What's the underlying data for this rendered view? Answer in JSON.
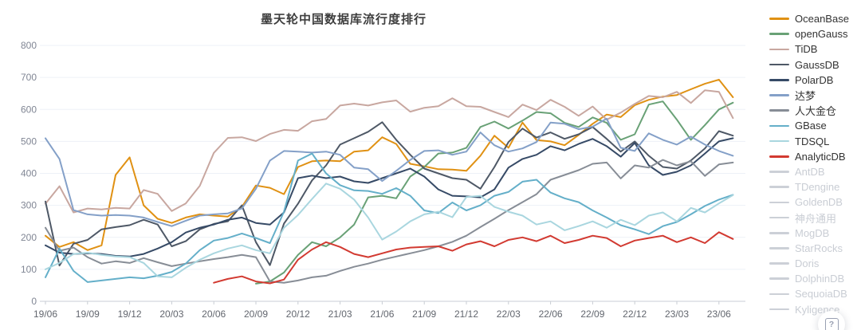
{
  "chart_data": {
    "type": "line",
    "title": "墨天轮中国数据库流行度排行",
    "x": [
      "19/06",
      "19/07",
      "19/08",
      "19/09",
      "19/10",
      "19/11",
      "19/12",
      "20/01",
      "20/02",
      "20/03",
      "20/04",
      "20/05",
      "20/06",
      "20/07",
      "20/08",
      "20/09",
      "20/10",
      "20/11",
      "20/12",
      "21/01",
      "21/02",
      "21/03",
      "21/04",
      "21/05",
      "21/06",
      "21/07",
      "21/08",
      "21/09",
      "21/10",
      "21/11",
      "21/12",
      "22/01",
      "22/02",
      "22/03",
      "22/04",
      "22/05",
      "22/06",
      "22/07",
      "22/08",
      "22/09",
      "22/10",
      "22/11",
      "22/12",
      "23/01",
      "23/02",
      "23/03",
      "23/04",
      "23/05",
      "23/06",
      "23/07"
    ],
    "x_label_every": 3,
    "ylim": [
      0,
      800
    ],
    "yticks": [
      0,
      100,
      200,
      300,
      400,
      500,
      600,
      700,
      800
    ],
    "grid": true,
    "legend_position": "right",
    "inactive_color": "#ccd0d7",
    "series": [
      {
        "name": "OceanBase",
        "color": "#e09113",
        "active": true,
        "values": [
          205,
          170,
          185,
          160,
          175,
          395,
          450,
          300,
          258,
          245,
          262,
          272,
          268,
          265,
          295,
          362,
          355,
          335,
          420,
          438,
          440,
          438,
          468,
          472,
          513,
          492,
          430,
          422,
          413,
          412,
          408,
          455,
          518,
          480,
          559,
          504,
          500,
          488,
          520,
          555,
          584,
          576,
          613,
          630,
          640,
          645,
          663,
          680,
          693,
          638
        ]
      },
      {
        "name": "openGauss",
        "color": "#69a176",
        "active": true,
        "values": [
          null,
          null,
          null,
          null,
          null,
          null,
          null,
          null,
          null,
          null,
          null,
          null,
          null,
          null,
          null,
          55,
          62,
          90,
          145,
          185,
          172,
          200,
          240,
          325,
          330,
          322,
          390,
          420,
          462,
          465,
          480,
          545,
          562,
          540,
          565,
          592,
          588,
          558,
          545,
          575,
          558,
          505,
          522,
          615,
          625,
          568,
          505,
          551,
          600,
          621
        ]
      },
      {
        "name": "TiDB",
        "color": "#c8a7a0",
        "active": true,
        "values": [
          305,
          360,
          278,
          290,
          287,
          292,
          290,
          348,
          336,
          282,
          306,
          361,
          464,
          511,
          513,
          501,
          523,
          536,
          533,
          563,
          570,
          612,
          618,
          612,
          622,
          628,
          593,
          605,
          610,
          635,
          610,
          608,
          592,
          576,
          615,
          598,
          630,
          608,
          580,
          609,
          568,
          590,
          617,
          642,
          638,
          655,
          620,
          660,
          655,
          573
        ]
      },
      {
        "name": "GaussDB",
        "color": "#4e5866",
        "active": true,
        "values": [
          312,
          112,
          180,
          192,
          225,
          232,
          238,
          255,
          240,
          172,
          188,
          225,
          242,
          250,
          300,
          185,
          113,
          243,
          305,
          378,
          425,
          490,
          510,
          530,
          560,
          505,
          458,
          415,
          400,
          385,
          380,
          352,
          420,
          498,
          540,
          512,
          528,
          508,
          522,
          545,
          508,
          468,
          500,
          455,
          420,
          415,
          440,
          478,
          532,
          518
        ]
      },
      {
        "name": "PolarDB",
        "color": "#364a66",
        "active": true,
        "values": [
          175,
          152,
          148,
          150,
          148,
          142,
          140,
          148,
          165,
          185,
          215,
          230,
          240,
          255,
          262,
          245,
          240,
          278,
          385,
          393,
          385,
          390,
          375,
          370,
          385,
          400,
          415,
          390,
          350,
          330,
          328,
          325,
          350,
          418,
          445,
          458,
          485,
          472,
          492,
          508,
          485,
          452,
          495,
          425,
          395,
          405,
          425,
          462,
          500,
          510
        ]
      },
      {
        "name": "达梦",
        "color": "#84a0c8",
        "active": true,
        "values": [
          510,
          445,
          285,
          272,
          268,
          270,
          268,
          262,
          248,
          235,
          252,
          268,
          272,
          275,
          290,
          352,
          440,
          470,
          468,
          465,
          468,
          458,
          418,
          413,
          376,
          408,
          442,
          470,
          472,
          458,
          468,
          528,
          488,
          468,
          478,
          498,
          559,
          555,
          538,
          546,
          571,
          480,
          470,
          525,
          505,
          490,
          515,
          490,
          470,
          455
        ]
      },
      {
        "name": "人大金仓",
        "color": "#878d96",
        "active": true,
        "values": [
          230,
          158,
          168,
          138,
          118,
          125,
          120,
          135,
          122,
          110,
          118,
          125,
          132,
          138,
          145,
          138,
          62,
          58,
          65,
          75,
          80,
          95,
          108,
          118,
          130,
          140,
          150,
          160,
          172,
          186,
          205,
          232,
          258,
          285,
          310,
          335,
          380,
          395,
          410,
          430,
          434,
          384,
          425,
          418,
          442,
          425,
          438,
          392,
          428,
          434
        ]
      },
      {
        "name": "GBase",
        "color": "#64afc9",
        "active": true,
        "values": [
          75,
          165,
          95,
          60,
          65,
          70,
          75,
          72,
          80,
          92,
          118,
          160,
          190,
          198,
          212,
          198,
          182,
          280,
          440,
          462,
          400,
          363,
          347,
          345,
          336,
          354,
          330,
          284,
          276,
          309,
          284,
          300,
          330,
          342,
          374,
          380,
          340,
          322,
          310,
          284,
          262,
          238,
          225,
          210,
          235,
          248,
          272,
          298,
          318,
          333
        ]
      },
      {
        "name": "TDSQL",
        "color": "#a9d6df",
        "active": true,
        "values": [
          100,
          120,
          148,
          152,
          145,
          140,
          138,
          120,
          78,
          75,
          105,
          130,
          150,
          165,
          175,
          160,
          150,
          230,
          270,
          320,
          368,
          352,
          318,
          262,
          193,
          218,
          250,
          272,
          280,
          263,
          326,
          330,
          295,
          280,
          268,
          240,
          250,
          222,
          235,
          250,
          230,
          255,
          238,
          268,
          278,
          250,
          292,
          278,
          306,
          332
        ]
      },
      {
        "name": "AnalyticDB",
        "color": "#d23a31",
        "active": true,
        "values": [
          null,
          null,
          null,
          null,
          null,
          null,
          null,
          null,
          null,
          null,
          null,
          null,
          58,
          70,
          78,
          62,
          56,
          68,
          130,
          162,
          185,
          170,
          148,
          138,
          150,
          162,
          168,
          170,
          172,
          158,
          178,
          188,
          172,
          192,
          200,
          188,
          205,
          182,
          192,
          205,
          198,
          172,
          190,
          198,
          205,
          185,
          200,
          182,
          216,
          195
        ]
      },
      {
        "name": "AntDB",
        "color": "#ccd0d7",
        "active": false,
        "values": []
      },
      {
        "name": "TDengine",
        "color": "#ccd0d7",
        "active": false,
        "values": []
      },
      {
        "name": "GoldenDB",
        "color": "#ccd0d7",
        "active": false,
        "values": []
      },
      {
        "name": "神舟通用",
        "color": "#ccd0d7",
        "active": false,
        "values": []
      },
      {
        "name": "MogDB",
        "color": "#ccd0d7",
        "active": false,
        "values": []
      },
      {
        "name": "StarRocks",
        "color": "#ccd0d7",
        "active": false,
        "values": []
      },
      {
        "name": "Doris",
        "color": "#ccd0d7",
        "active": false,
        "values": []
      },
      {
        "name": "DolphinDB",
        "color": "#ccd0d7",
        "active": false,
        "values": []
      },
      {
        "name": "SequoiaDB",
        "color": "#ccd0d7",
        "active": false,
        "values": []
      },
      {
        "name": "Kyligence",
        "color": "#ccd0d7",
        "active": false,
        "values": []
      }
    ]
  },
  "help_button": {
    "glyph": "?"
  }
}
